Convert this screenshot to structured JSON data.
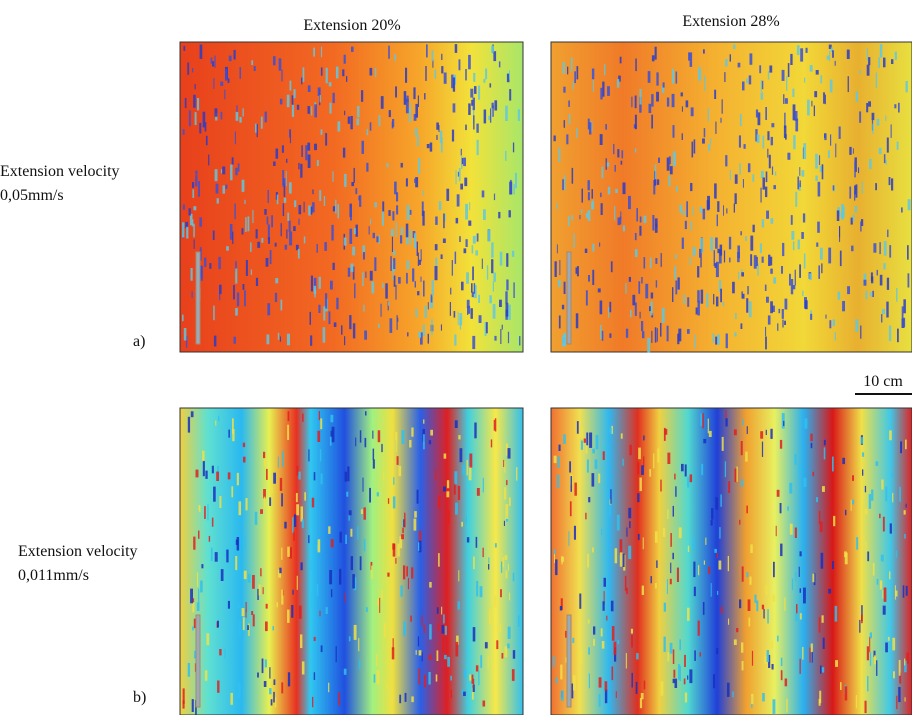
{
  "columns": [
    "Extension 20%",
    "Extension 28%"
  ],
  "rows": [
    {
      "label": [
        "Extension velocity",
        "0,05mm/s"
      ],
      "tag": "a)"
    },
    {
      "label": [
        "Extension velocity",
        "0,011mm/s"
      ],
      "tag": "b)"
    }
  ],
  "scale_bar": "10 cm"
}
